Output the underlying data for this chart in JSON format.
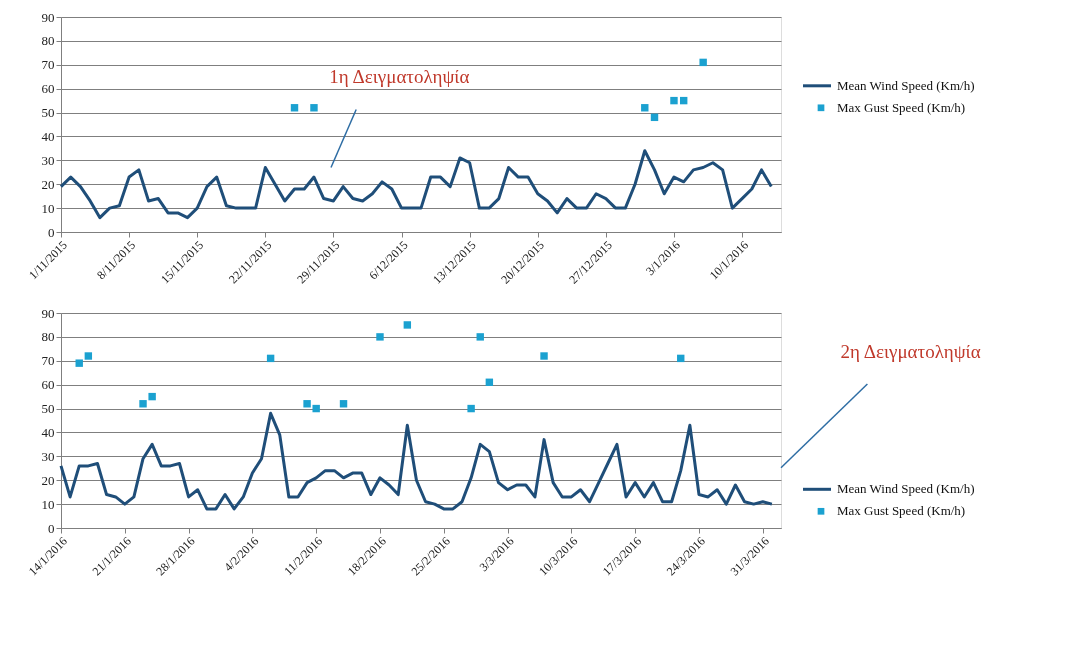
{
  "chart_data": [
    {
      "type": "line",
      "ylim": [
        0,
        90
      ],
      "yticks": [
        0,
        10,
        20,
        30,
        40,
        50,
        60,
        70,
        80,
        90
      ],
      "grid": "y",
      "legend": "right",
      "xlim": [
        "2015-11-01",
        "2016-01-14"
      ],
      "xticks": [
        {
          "value": "2015-11-01",
          "label": "1/11/2015"
        },
        {
          "value": "2015-11-08",
          "label": "8/11/2015"
        },
        {
          "value": "2015-11-15",
          "label": "15/11/2015"
        },
        {
          "value": "2015-11-22",
          "label": "22/11/2015"
        },
        {
          "value": "2015-11-29",
          "label": "29/11/2015"
        },
        {
          "value": "2015-12-06",
          "label": "6/12/2015"
        },
        {
          "value": "2015-12-13",
          "label": "13/12/2015"
        },
        {
          "value": "2015-12-20",
          "label": "20/12/2015"
        },
        {
          "value": "2015-12-27",
          "label": "27/12/2015"
        },
        {
          "value": "2016-01-03",
          "label": "3/1/2016"
        },
        {
          "value": "2016-01-10",
          "label": "10/1/2016"
        }
      ],
      "annotations": [
        "1η Δειγματοληψία"
      ],
      "series": [
        {
          "name": "Mean Wind Speed (Km/h)",
          "type": "line",
          "color": "#1f4e79",
          "line_style": "solid",
          "x": [
            "2015-11-01",
            "2015-11-02",
            "2015-11-03",
            "2015-11-04",
            "2015-11-05",
            "2015-11-06",
            "2015-11-07",
            "2015-11-08",
            "2015-11-09",
            "2015-11-10",
            "2015-11-11",
            "2015-11-12",
            "2015-11-13",
            "2015-11-14",
            "2015-11-15",
            "2015-11-16",
            "2015-11-17",
            "2015-11-18",
            "2015-11-19",
            "2015-11-20",
            "2015-11-21",
            "2015-11-22",
            "2015-11-23",
            "2015-11-24",
            "2015-11-25",
            "2015-11-26",
            "2015-11-27",
            "2015-11-28",
            "2015-11-29",
            "2015-11-30",
            "2015-12-01",
            "2015-12-02",
            "2015-12-03",
            "2015-12-04",
            "2015-12-05",
            "2015-12-06",
            "2015-12-07",
            "2015-12-08",
            "2015-12-09",
            "2015-12-10",
            "2015-12-11",
            "2015-12-12",
            "2015-12-13",
            "2015-12-14",
            "2015-12-15",
            "2015-12-16",
            "2015-12-17",
            "2015-12-18",
            "2015-12-19",
            "2015-12-20",
            "2015-12-21",
            "2015-12-22",
            "2015-12-23",
            "2015-12-24",
            "2015-12-25",
            "2015-12-26",
            "2015-12-27",
            "2015-12-28",
            "2015-12-29",
            "2015-12-30",
            "2015-12-31",
            "2016-01-01",
            "2016-01-02",
            "2016-01-03",
            "2016-01-04",
            "2016-01-05",
            "2016-01-06",
            "2016-01-07",
            "2016-01-08",
            "2016-01-09",
            "2016-01-10",
            "2016-01-11",
            "2016-01-12",
            "2016-01-13"
          ],
          "values": [
            19,
            23,
            19,
            13,
            6,
            10,
            11,
            23,
            26,
            13,
            14,
            8,
            8,
            6,
            10,
            19,
            23,
            11,
            10,
            10,
            10,
            27,
            20,
            13,
            18,
            18,
            23,
            14,
            13,
            19,
            14,
            13,
            16,
            21,
            18,
            10,
            10,
            10,
            23,
            23,
            19,
            31,
            29,
            10,
            10,
            14,
            27,
            23,
            23,
            16,
            13,
            8,
            14,
            10,
            10,
            16,
            14,
            10,
            10,
            20,
            34,
            26,
            16,
            23,
            21,
            26,
            27,
            29,
            26,
            10,
            14,
            18,
            26,
            19
          ]
        },
        {
          "name": "Max Gust Speed (Km/h)",
          "type": "scatter",
          "marker": "square",
          "color": "#1ba1d0",
          "x": [
            "2015-11-25",
            "2015-11-27",
            "2015-12-31",
            "2016-01-01",
            "2016-01-03",
            "2016-01-04",
            "2016-01-06"
          ],
          "values": [
            52,
            52,
            52,
            48,
            55,
            55,
            71
          ]
        }
      ]
    },
    {
      "type": "line",
      "ylim": [
        0,
        90
      ],
      "yticks": [
        0,
        10,
        20,
        30,
        40,
        50,
        60,
        70,
        80,
        90
      ],
      "grid": "y",
      "legend": "right",
      "xlim": [
        "2016-01-14",
        "2016-04-02"
      ],
      "xticks": [
        {
          "value": "2016-01-14",
          "label": "14/1/2016"
        },
        {
          "value": "2016-01-21",
          "label": "21/1/2016"
        },
        {
          "value": "2016-01-28",
          "label": "28/1/2016"
        },
        {
          "value": "2016-02-04",
          "label": "4/2/2016"
        },
        {
          "value": "2016-02-11",
          "label": "11/2/2016"
        },
        {
          "value": "2016-02-18",
          "label": "18/2/2016"
        },
        {
          "value": "2016-02-25",
          "label": "25/2/2016"
        },
        {
          "value": "2016-03-03",
          "label": "3/3/2016"
        },
        {
          "value": "2016-03-10",
          "label": "10/3/2016"
        },
        {
          "value": "2016-03-17",
          "label": "17/3/2016"
        },
        {
          "value": "2016-03-24",
          "label": "24/3/2016"
        },
        {
          "value": "2016-03-31",
          "label": "31/3/2016"
        }
      ],
      "annotations": [
        "2η Δειγματοληψία"
      ],
      "series": [
        {
          "name": "Mean Wind Speed (Km/h)",
          "type": "line",
          "color": "#1f4e79",
          "line_style": "solid",
          "x": [
            "2016-01-14",
            "2016-01-15",
            "2016-01-16",
            "2016-01-17",
            "2016-01-18",
            "2016-01-19",
            "2016-01-20",
            "2016-01-21",
            "2016-01-22",
            "2016-01-23",
            "2016-01-24",
            "2016-01-25",
            "2016-01-26",
            "2016-01-27",
            "2016-01-28",
            "2016-01-29",
            "2016-01-30",
            "2016-01-31",
            "2016-02-01",
            "2016-02-02",
            "2016-02-03",
            "2016-02-04",
            "2016-02-05",
            "2016-02-06",
            "2016-02-07",
            "2016-02-08",
            "2016-02-09",
            "2016-02-10",
            "2016-02-11",
            "2016-02-12",
            "2016-02-13",
            "2016-02-14",
            "2016-02-15",
            "2016-02-16",
            "2016-02-17",
            "2016-02-18",
            "2016-02-19",
            "2016-02-20",
            "2016-02-21",
            "2016-02-22",
            "2016-02-23",
            "2016-02-24",
            "2016-02-25",
            "2016-02-26",
            "2016-02-27",
            "2016-02-28",
            "2016-02-29",
            "2016-03-01",
            "2016-03-02",
            "2016-03-03",
            "2016-03-04",
            "2016-03-05",
            "2016-03-06",
            "2016-03-07",
            "2016-03-08",
            "2016-03-09",
            "2016-03-10",
            "2016-03-11",
            "2016-03-12",
            "2016-03-13",
            "2016-03-14",
            "2016-03-15",
            "2016-03-16",
            "2016-03-17",
            "2016-03-18",
            "2016-03-19",
            "2016-03-20",
            "2016-03-21",
            "2016-03-22",
            "2016-03-23",
            "2016-03-24",
            "2016-03-25",
            "2016-03-26",
            "2016-03-27",
            "2016-03-28",
            "2016-03-29",
            "2016-03-30",
            "2016-03-31",
            "2016-04-01"
          ],
          "values": [
            26,
            13,
            26,
            26,
            27,
            14,
            13,
            10,
            13,
            29,
            35,
            26,
            26,
            27,
            13,
            16,
            8,
            8,
            14,
            8,
            13,
            23,
            29,
            48,
            39,
            13,
            13,
            19,
            21,
            24,
            24,
            21,
            23,
            23,
            14,
            21,
            18,
            14,
            43,
            20,
            11,
            10,
            8,
            8,
            11,
            21,
            35,
            32,
            19,
            16,
            18,
            18,
            13,
            37,
            19,
            13,
            13,
            16,
            11,
            19,
            27,
            35,
            13,
            19,
            13,
            19,
            11,
            11,
            24,
            43,
            14,
            13,
            16,
            10,
            18,
            11,
            10,
            11,
            10
          ]
        },
        {
          "name": "Max Gust Speed (Km/h)",
          "type": "scatter",
          "marker": "square",
          "color": "#1ba1d0",
          "x": [
            "2016-01-16",
            "2016-01-17",
            "2016-01-23",
            "2016-01-24",
            "2016-02-06",
            "2016-02-10",
            "2016-02-11",
            "2016-02-14",
            "2016-02-18",
            "2016-02-21",
            "2016-02-28",
            "2016-02-29",
            "2016-03-01",
            "2016-03-07",
            "2016-03-22"
          ],
          "values": [
            69,
            72,
            52,
            55,
            71,
            52,
            50,
            52,
            80,
            85,
            50,
            80,
            61,
            72,
            71
          ]
        }
      ]
    }
  ]
}
